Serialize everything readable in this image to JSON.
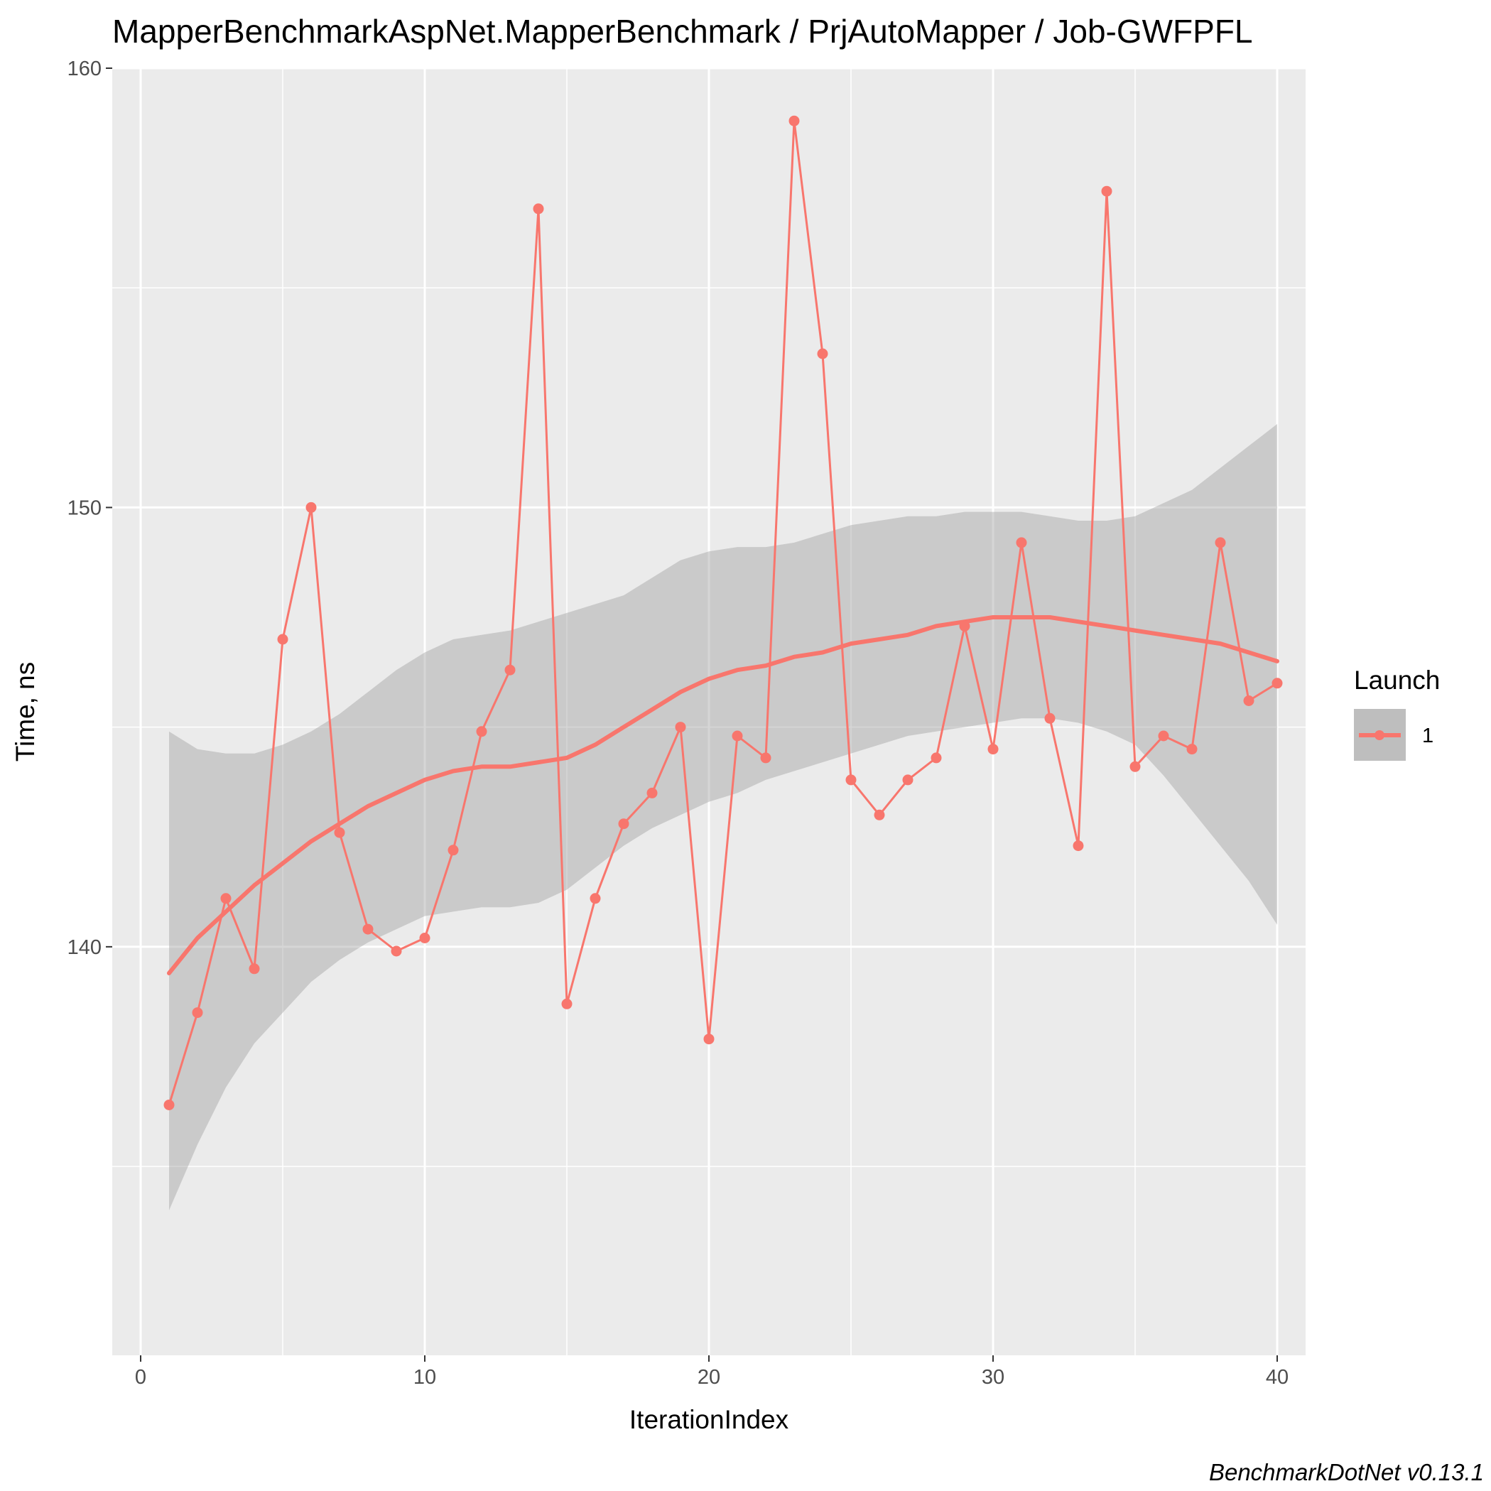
{
  "chart_data": {
    "type": "line",
    "title": "MapperBenchmarkAspNet.MapperBenchmark / PrjAutoMapper / Job-GWFPFL",
    "xlabel": "IterationIndex",
    "ylabel": "Time, ns",
    "caption": "BenchmarkDotNet v0.13.1",
    "xlim": [
      -1,
      41
    ],
    "ylim": [
      130.7,
      160
    ],
    "x_ticks": [
      0,
      10,
      20,
      30,
      40
    ],
    "x_tick_labels": [
      "0",
      "10",
      "20",
      "30",
      "40"
    ],
    "y_ticks": [
      140,
      150,
      160
    ],
    "y_tick_labels": [
      "140",
      "150",
      "160"
    ],
    "y_minor_ticks": [
      135,
      145,
      155
    ],
    "x_minor_ticks": [
      5,
      15,
      25,
      35
    ],
    "grid": true,
    "legend": {
      "title": "Launch",
      "position": "right",
      "entries": [
        "1"
      ]
    },
    "series": [
      {
        "name": "1",
        "color": "#F8766D",
        "x": [
          1,
          2,
          3,
          4,
          5,
          6,
          7,
          8,
          9,
          10,
          11,
          12,
          13,
          14,
          15,
          16,
          17,
          18,
          19,
          20,
          21,
          22,
          23,
          24,
          25,
          26,
          27,
          28,
          29,
          30,
          31,
          32,
          33,
          34,
          35,
          36,
          37,
          38,
          39,
          40
        ],
        "values": [
          136.4,
          138.5,
          141.1,
          139.5,
          147.0,
          150.0,
          142.6,
          140.4,
          139.9,
          140.2,
          142.2,
          144.9,
          146.3,
          156.8,
          138.7,
          141.1,
          142.8,
          143.5,
          145.0,
          137.9,
          144.8,
          144.3,
          158.8,
          153.5,
          143.8,
          143.0,
          143.8,
          144.3,
          147.3,
          144.5,
          149.2,
          145.2,
          142.3,
          157.2,
          144.1,
          144.8,
          144.5,
          149.2,
          145.6,
          146.0
        ]
      }
    ],
    "smooth": {
      "color": "#F8766D",
      "band_color": "#999999",
      "x": [
        1,
        2,
        3,
        4,
        5,
        6,
        7,
        8,
        9,
        10,
        11,
        12,
        13,
        14,
        15,
        16,
        17,
        18,
        19,
        20,
        21,
        22,
        23,
        24,
        25,
        26,
        27,
        28,
        29,
        30,
        31,
        32,
        33,
        34,
        35,
        36,
        37,
        38,
        39,
        40
      ],
      "y": [
        139.4,
        140.2,
        140.8,
        141.4,
        141.9,
        142.4,
        142.8,
        143.2,
        143.5,
        143.8,
        144.0,
        144.1,
        144.1,
        144.2,
        144.3,
        144.6,
        145.0,
        145.4,
        145.8,
        146.1,
        146.3,
        146.4,
        146.6,
        146.7,
        146.9,
        147.0,
        147.1,
        147.3,
        147.4,
        147.5,
        147.5,
        147.5,
        147.4,
        147.3,
        147.2,
        147.1,
        147.0,
        146.9,
        146.7,
        146.5
      ],
      "lower": [
        134.0,
        135.5,
        136.8,
        137.8,
        138.5,
        139.2,
        139.7,
        140.1,
        140.4,
        140.7,
        140.8,
        140.9,
        140.9,
        141.0,
        141.3,
        141.8,
        142.3,
        142.7,
        143.0,
        143.3,
        143.5,
        143.8,
        144.0,
        144.2,
        144.4,
        144.6,
        144.8,
        144.9,
        145.0,
        145.1,
        145.2,
        145.2,
        145.1,
        144.9,
        144.6,
        143.9,
        143.1,
        142.3,
        141.5,
        140.5
      ],
      "upper": [
        144.9,
        144.5,
        144.4,
        144.4,
        144.6,
        144.9,
        145.3,
        145.8,
        146.3,
        146.7,
        147.0,
        147.1,
        147.2,
        147.4,
        147.6,
        147.8,
        148.0,
        148.4,
        148.8,
        149.0,
        149.1,
        149.1,
        149.2,
        149.4,
        149.6,
        149.7,
        149.8,
        149.8,
        149.9,
        149.9,
        149.9,
        149.8,
        149.7,
        149.7,
        149.8,
        150.1,
        150.4,
        150.9,
        151.4,
        151.9
      ]
    }
  }
}
